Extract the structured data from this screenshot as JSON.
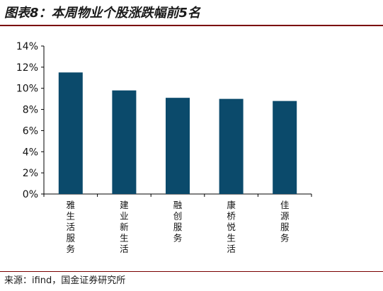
{
  "title": "图表8：本周物业个股涨跌幅前5名",
  "source": "来源：ifind，国金证券研究所",
  "chart_data": {
    "type": "bar",
    "categories": [
      "雅生活服务",
      "建业新生活",
      "融创服务",
      "康桥悦生活",
      "佳源服务"
    ],
    "values": [
      11.5,
      9.8,
      9.1,
      9.0,
      8.8
    ],
    "ylim": [
      0,
      14
    ],
    "yticks": [
      "0%",
      "2%",
      "4%",
      "6%",
      "8%",
      "10%",
      "12%",
      "14%"
    ],
    "xlabel": "",
    "ylabel": "",
    "grid": false,
    "bar_color": "#0b4a6b"
  }
}
